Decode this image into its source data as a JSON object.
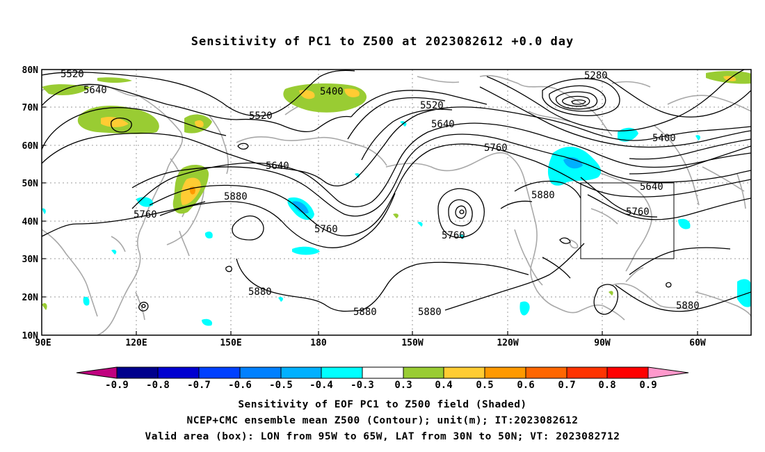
{
  "title": "Sensitivity of PC1 to Z500 at 2023082612 +0.0 day",
  "map": {
    "lat_labels": [
      "80N",
      "70N",
      "60N",
      "50N",
      "40N",
      "30N",
      "20N",
      "10N"
    ],
    "lon_labels": [
      "90E",
      "120E",
      "150E",
      "180",
      "150W",
      "120W",
      "90W",
      "60W"
    ],
    "contour_labels": [
      {
        "id": "c5520a",
        "text": "5520"
      },
      {
        "id": "c5640a",
        "text": "5640"
      },
      {
        "id": "c5400a",
        "text": "5400"
      },
      {
        "id": "c5520b",
        "text": "5520"
      },
      {
        "id": "c5520c",
        "text": "5520"
      },
      {
        "id": "c5280",
        "text": "5280"
      },
      {
        "id": "c5640b",
        "text": "5640"
      },
      {
        "id": "c5400b",
        "text": "5400"
      },
      {
        "id": "c5760a",
        "text": "5760"
      },
      {
        "id": "c5640c",
        "text": "5640"
      },
      {
        "id": "c5640d",
        "text": "5640"
      },
      {
        "id": "c5880a",
        "text": "5880"
      },
      {
        "id": "c5760b",
        "text": "5760"
      },
      {
        "id": "c5880b",
        "text": "5880"
      },
      {
        "id": "c5760c",
        "text": "5760"
      },
      {
        "id": "c5760d",
        "text": "5760"
      },
      {
        "id": "c5760e",
        "text": "5760"
      },
      {
        "id": "c5880c",
        "text": "5880"
      },
      {
        "id": "c5880d",
        "text": "5880"
      },
      {
        "id": "c5880e",
        "text": "5880"
      },
      {
        "id": "c5880f",
        "text": "5880"
      }
    ],
    "valid_box": {
      "lon_from": "95W",
      "lon_to": "65W",
      "lat_from": "30N",
      "lat_to": "50N"
    }
  },
  "colorbar": {
    "labels": [
      "-0.9",
      "-0.8",
      "-0.7",
      "-0.6",
      "-0.5",
      "-0.4",
      "-0.3",
      "0.3",
      "0.4",
      "0.5",
      "0.6",
      "0.7",
      "0.8",
      "0.9"
    ],
    "colors": [
      "#c0007f",
      "#00008c",
      "#0000d0",
      "#0040ff",
      "#0080ff",
      "#00b0ff",
      "#00ffff",
      "#ffffff",
      "#99cc33",
      "#ffcc33",
      "#ff9900",
      "#ff6600",
      "#ff3300",
      "#ff0000",
      "#ff99cc"
    ]
  },
  "captions": [
    "Sensitivity of EOF PC1 to Z500 field (Shaded)",
    "NCEP+CMC ensemble mean Z500 (Contour); unit(m); IT:2023082612",
    "Valid area (box): LON from 95W to 65W, LAT from 30N to 50N; VT: 2023082712"
  ]
}
